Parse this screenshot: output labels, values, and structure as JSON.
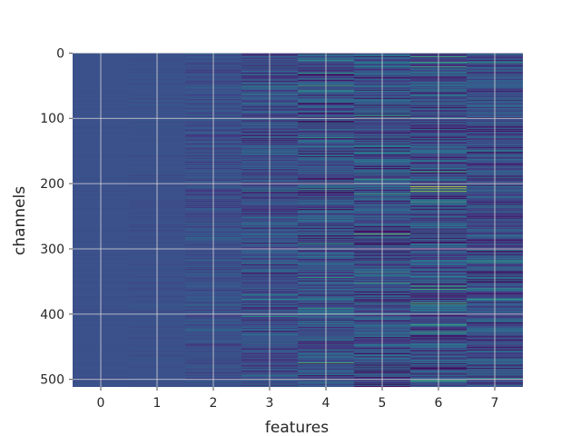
{
  "chart_data": {
    "type": "heatmap",
    "title": "",
    "xlabel": "features",
    "ylabel": "channels",
    "columns": 8,
    "rows": 512,
    "x_ticks": [
      0,
      1,
      2,
      3,
      4,
      5,
      6,
      7
    ],
    "y_ticks": [
      0,
      100,
      200,
      300,
      400,
      500
    ],
    "xlim": [
      -0.5,
      7.5
    ],
    "ylim": [
      511.5,
      -0.5
    ],
    "y_axis_inverted": true,
    "grid": true,
    "colormap": "viridis",
    "column_variability": [
      0.03,
      0.06,
      0.22,
      0.45,
      0.6,
      0.65,
      0.7,
      0.55
    ],
    "highlights": [
      {
        "feature": 6,
        "channel": 205,
        "level": 0.95
      },
      {
        "feature": 6,
        "channel": 208,
        "level": 0.9
      },
      {
        "feature": 6,
        "channel": 212,
        "level": 0.85
      },
      {
        "feature": 4,
        "channel": 475,
        "level": 0.75
      },
      {
        "feature": 5,
        "channel": 277,
        "level": 0.8
      },
      {
        "feature": 6,
        "channel": 14,
        "level": 0.7
      },
      {
        "feature": 4,
        "channel": 50,
        "level": 0.7
      },
      {
        "feature": 7,
        "channel": 377,
        "level": 0.65
      }
    ],
    "colors": {
      "base": "#3b518b",
      "grid": "#d9d9d9",
      "axis": "#262626"
    }
  }
}
